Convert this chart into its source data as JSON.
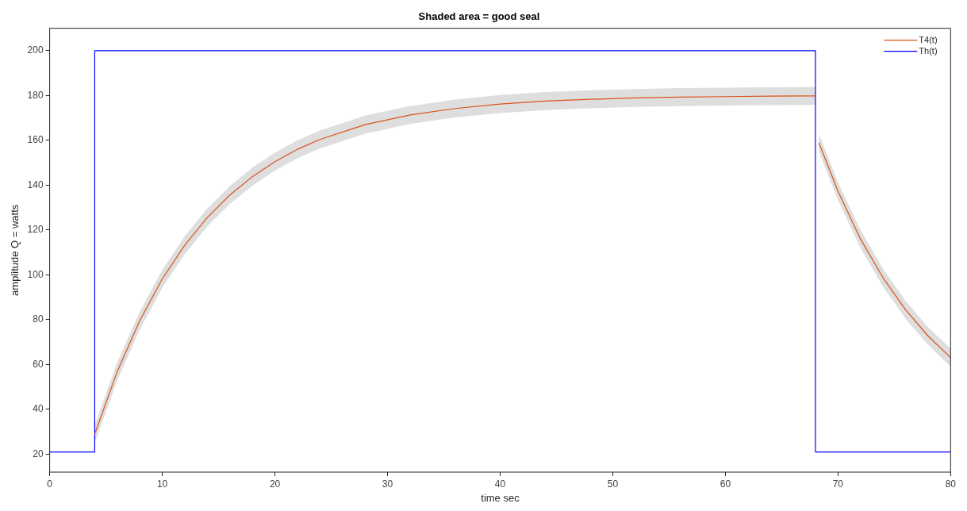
{
  "chart_data": {
    "type": "line",
    "title": "Shaded area = good seal",
    "xlabel": "time sec",
    "ylabel": "amplitude Q = watts",
    "xlim": [
      0,
      80
    ],
    "ylim": [
      12,
      210
    ],
    "xticks": [
      0,
      10,
      20,
      30,
      40,
      50,
      60,
      70,
      80
    ],
    "yticks": [
      20,
      40,
      60,
      80,
      100,
      120,
      140,
      160,
      180,
      200
    ],
    "grid": false,
    "legend": "top right",
    "marker": "none",
    "line_style": "solid",
    "series": [
      {
        "name": "T4(t)",
        "color": "#d95319",
        "x": [
          4,
          6,
          8,
          10,
          12,
          14,
          16,
          18,
          20,
          22,
          24,
          28,
          32,
          36,
          40,
          44,
          48,
          52,
          56,
          60,
          64,
          68,
          68.1,
          68.3,
          70,
          72,
          74,
          76,
          78,
          80
        ],
        "values": [
          29,
          56.9,
          79.6,
          98.2,
          113.3,
          125.6,
          135.6,
          143.8,
          150.5,
          156,
          160.4,
          167,
          171.3,
          174.2,
          176.2,
          177.5,
          178.3,
          178.9,
          179.3,
          179.5,
          179.7,
          179.8,
          null,
          159,
          137.3,
          116,
          98.7,
          84.4,
          72.7,
          63.1
        ],
        "lower": [
          25,
          52.9,
          75.6,
          94.2,
          109.3,
          121.6,
          131.6,
          139.8,
          146.5,
          152,
          156.4,
          163,
          167.3,
          170.2,
          172.2,
          173.5,
          174.3,
          174.9,
          175.3,
          175.5,
          175.7,
          175.8,
          null,
          155,
          133.3,
          112,
          94.7,
          80.4,
          68.7,
          59.1
        ],
        "upper": [
          33,
          60.9,
          83.6,
          102.2,
          117.3,
          129.6,
          139.6,
          147.8,
          154.5,
          160,
          164.4,
          171,
          175.3,
          178.2,
          180.2,
          181.5,
          182.3,
          182.9,
          183.3,
          183.5,
          183.7,
          183.8,
          null,
          163,
          141.3,
          120,
          102.7,
          88.4,
          76.7,
          67.1
        ]
      },
      {
        "name": "Th(t)",
        "color": "#0000ff",
        "x": [
          0,
          4,
          4,
          68,
          68,
          80
        ],
        "values": [
          21,
          21,
          200,
          200,
          21,
          21
        ]
      }
    ]
  }
}
